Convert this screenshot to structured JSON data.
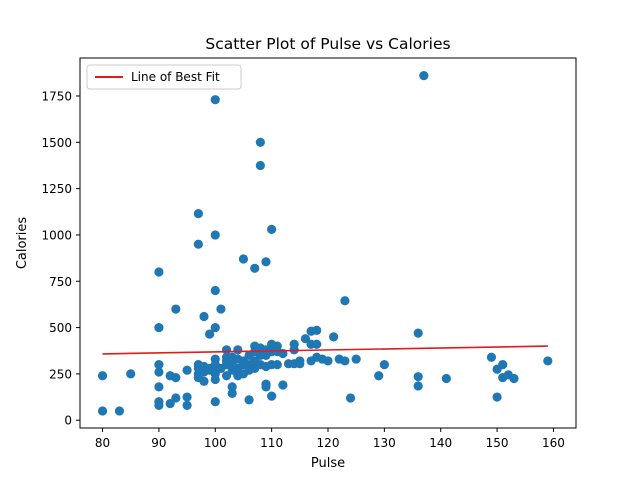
{
  "chart_data": {
    "type": "scatter",
    "title": "Scatter Plot of Pulse vs Calories",
    "xlabel": "Pulse",
    "ylabel": "Calories",
    "xlim": [
      76,
      164
    ],
    "ylim": [
      -42,
      1955
    ],
    "xticks": [
      80,
      90,
      100,
      110,
      120,
      130,
      140,
      150,
      160
    ],
    "yticks": [
      0,
      250,
      500,
      750,
      1000,
      1250,
      1500,
      1750
    ],
    "grid": false,
    "legend": {
      "placement": "top-left",
      "entries": [
        "Line of Best Fit"
      ]
    },
    "colors": {
      "points": "#1f77b4",
      "fit_line": "#e41a1c"
    },
    "series": [
      {
        "type": "scatter",
        "points": [
          [
            80,
            240
          ],
          [
            80,
            50
          ],
          [
            83,
            50
          ],
          [
            85,
            250
          ],
          [
            90,
            800
          ],
          [
            90,
            500
          ],
          [
            90,
            300
          ],
          [
            90,
            260
          ],
          [
            90,
            180
          ],
          [
            90,
            100
          ],
          [
            90,
            80
          ],
          [
            92,
            240
          ],
          [
            92,
            90
          ],
          [
            93,
            600
          ],
          [
            93,
            230
          ],
          [
            93,
            120
          ],
          [
            95,
            270
          ],
          [
            95,
            125
          ],
          [
            95,
            80
          ],
          [
            97,
            1115
          ],
          [
            97,
            950
          ],
          [
            97,
            300
          ],
          [
            97,
            280
          ],
          [
            97,
            250
          ],
          [
            97,
            230
          ],
          [
            98,
            560
          ],
          [
            98,
            290
          ],
          [
            98,
            260
          ],
          [
            98,
            210
          ],
          [
            99,
            465
          ],
          [
            99,
            280
          ],
          [
            99,
            270
          ],
          [
            100,
            1730
          ],
          [
            100,
            1000
          ],
          [
            100,
            700
          ],
          [
            100,
            500
          ],
          [
            100,
            330
          ],
          [
            100,
            300
          ],
          [
            100,
            280
          ],
          [
            100,
            250
          ],
          [
            100,
            220
          ],
          [
            100,
            100
          ],
          [
            101,
            600
          ],
          [
            101,
            280
          ],
          [
            102,
            380
          ],
          [
            102,
            340
          ],
          [
            102,
            320
          ],
          [
            102,
            300
          ],
          [
            102,
            240
          ],
          [
            103,
            340
          ],
          [
            103,
            310
          ],
          [
            103,
            270
          ],
          [
            103,
            180
          ],
          [
            103,
            145
          ],
          [
            104,
            380
          ],
          [
            104,
            330
          ],
          [
            104,
            280
          ],
          [
            104,
            260
          ],
          [
            104,
            240
          ],
          [
            105,
            870
          ],
          [
            105,
            320
          ],
          [
            105,
            300
          ],
          [
            105,
            250
          ],
          [
            106,
            350
          ],
          [
            106,
            300
          ],
          [
            106,
            270
          ],
          [
            106,
            110
          ],
          [
            107,
            820
          ],
          [
            107,
            400
          ],
          [
            107,
            370
          ],
          [
            107,
            320
          ],
          [
            107,
            280
          ],
          [
            108,
            1500
          ],
          [
            108,
            1375
          ],
          [
            108,
            390
          ],
          [
            108,
            350
          ],
          [
            108,
            300
          ],
          [
            109,
            855
          ],
          [
            109,
            380
          ],
          [
            109,
            350
          ],
          [
            109,
            290
          ],
          [
            109,
            195
          ],
          [
            109,
            180
          ],
          [
            110,
            1030
          ],
          [
            110,
            410
          ],
          [
            110,
            370
          ],
          [
            110,
            300
          ],
          [
            110,
            130
          ],
          [
            111,
            400
          ],
          [
            111,
            370
          ],
          [
            111,
            300
          ],
          [
            112,
            360
          ],
          [
            112,
            190
          ],
          [
            113,
            305
          ],
          [
            114,
            410
          ],
          [
            114,
            380
          ],
          [
            114,
            305
          ],
          [
            115,
            320
          ],
          [
            115,
            305
          ],
          [
            116,
            440
          ],
          [
            117,
            480
          ],
          [
            117,
            410
          ],
          [
            117,
            320
          ],
          [
            118,
            485
          ],
          [
            118,
            410
          ],
          [
            118,
            340
          ],
          [
            119,
            330
          ],
          [
            120,
            320
          ],
          [
            121,
            450
          ],
          [
            122,
            330
          ],
          [
            123,
            645
          ],
          [
            123,
            320
          ],
          [
            124,
            120
          ],
          [
            125,
            330
          ],
          [
            129,
            240
          ],
          [
            130,
            300
          ],
          [
            136,
            470
          ],
          [
            136,
            235
          ],
          [
            136,
            185
          ],
          [
            137,
            1860
          ],
          [
            141,
            225
          ],
          [
            149,
            340
          ],
          [
            150,
            275
          ],
          [
            150,
            125
          ],
          [
            151,
            300
          ],
          [
            151,
            230
          ],
          [
            152,
            245
          ],
          [
            153,
            225
          ],
          [
            159,
            320
          ]
        ]
      },
      {
        "name": "Line of Best Fit",
        "type": "line",
        "points": [
          [
            80,
            358
          ],
          [
            159,
            400
          ]
        ]
      }
    ]
  }
}
